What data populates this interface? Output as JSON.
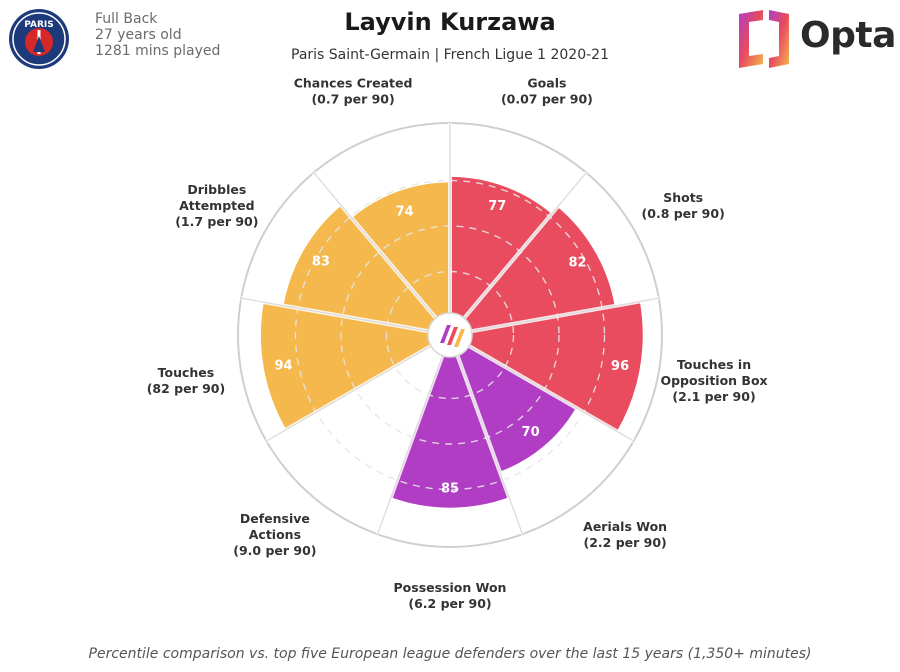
{
  "player": {
    "name": "Layvin Kurzawa",
    "position": "Full Back",
    "age": "27 years old",
    "minutes": "1281 mins played",
    "context": "Paris Saint-Germain | French Ligue 1 2020-21"
  },
  "badge": {
    "text": "PARIS",
    "color": "#1d3a7a",
    "accent": "#d62828"
  },
  "brand": {
    "name": "Opta"
  },
  "footnote": "Percentile comparison vs. top five European league defenders over the last 15 years (1,350+ minutes)",
  "chart_data": {
    "type": "polar-bar",
    "title": "Layvin Kurzawa",
    "subtitle": "Paris Saint-Germain | French Ligue 1 2020-21",
    "rmax": 100,
    "rings": [
      25,
      50,
      75
    ],
    "categories": [
      {
        "label": [
          "Goals",
          "(0.07 per 90)"
        ],
        "value": 77,
        "group": "attacking"
      },
      {
        "label": [
          "Shots",
          "(0.8 per 90)"
        ],
        "value": 82,
        "group": "attacking"
      },
      {
        "label": [
          "Touches in",
          "Opposition Box",
          "(2.1 per 90)"
        ],
        "value": 96,
        "group": "attacking"
      },
      {
        "label": [
          "Aerials Won",
          "(2.2 per 90)"
        ],
        "value": 70,
        "group": "defending"
      },
      {
        "label": [
          "Possession Won",
          "(6.2 per 90)"
        ],
        "value": 85,
        "group": "defending"
      },
      {
        "label": [
          "Defensive",
          "Actions",
          "(9.0 per 90)"
        ],
        "value": 0,
        "group": "defending"
      },
      {
        "label": [
          "Touches",
          "(82 per 90)"
        ],
        "value": 94,
        "group": "possession"
      },
      {
        "label": [
          "Dribbles",
          "Attempted",
          "(1.7 per 90)"
        ],
        "value": 83,
        "group": "possession"
      },
      {
        "label": [
          "Chances Created",
          "(0.7 per 90)"
        ],
        "value": 74,
        "group": "possession"
      }
    ],
    "group_colors": {
      "attacking": "#e94b5f",
      "defending": "#b03dc4",
      "possession": "#f5b84d"
    }
  }
}
